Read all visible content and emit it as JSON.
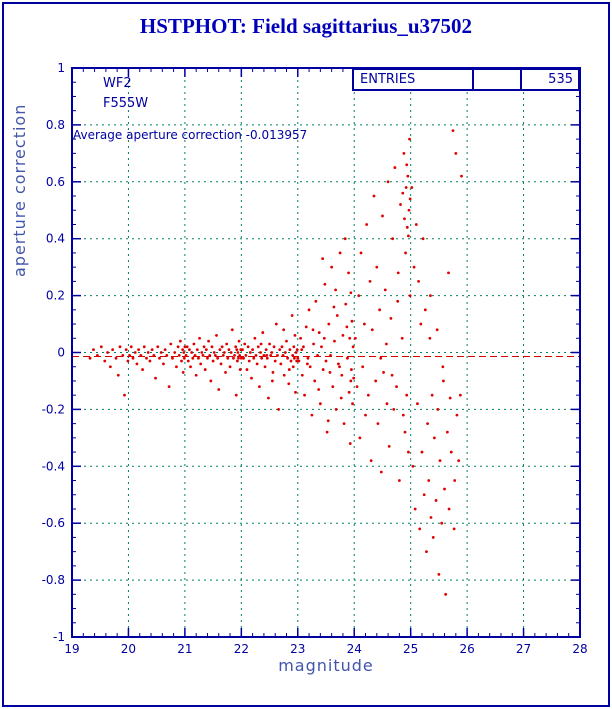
{
  "window": {
    "bg": "#ffffff",
    "border_color": "#0000a0"
  },
  "title": "HSTPHOT: Field sagittarius_u37502",
  "annotations": {
    "detector": "WF2",
    "filter": "F555W",
    "avg_text": "Average aperture correction -0.013957",
    "entries_label": "ENTRIES",
    "entries_value": "535"
  },
  "chart_data": {
    "type": "scatter",
    "title": "HSTPHOT: Field sagittarius_u37502",
    "xlabel": "magnitude",
    "ylabel": "aperture correction",
    "xlim": [
      19,
      28
    ],
    "ylim": [
      -1,
      1
    ],
    "x_ticks": [
      19,
      20,
      21,
      22,
      23,
      24,
      25,
      26,
      27,
      28
    ],
    "y_ticks": [
      -1,
      -0.8,
      -0.6,
      -0.4,
      -0.2,
      0,
      0.2,
      0.4,
      0.6,
      0.8,
      1
    ],
    "grid": true,
    "grid_color": "#008066",
    "frame_color": "#0000a0",
    "tick_label_color": "#0000a0",
    "point_color": "#e00000",
    "entries": 535,
    "average_aperture_correction": -0.013957,
    "mean_line": {
      "y": -0.013957,
      "color": "#d40000",
      "style": "dashed"
    },
    "points": [
      [
        19.32,
        -0.02
      ],
      [
        19.38,
        0.01
      ],
      [
        19.45,
        -0.01
      ],
      [
        19.52,
        0.02
      ],
      [
        19.58,
        -0.03
      ],
      [
        19.63,
        0.0
      ],
      [
        19.68,
        -0.05
      ],
      [
        19.72,
        0.01
      ],
      [
        19.78,
        -0.02
      ],
      [
        19.82,
        -0.08
      ],
      [
        19.85,
        0.02
      ],
      [
        19.9,
        -0.01
      ],
      [
        19.93,
        -0.15
      ],
      [
        19.96,
        0.01
      ],
      [
        19.99,
        -0.03
      ],
      [
        20.02,
        -0.01
      ],
      [
        20.05,
        0.02
      ],
      [
        20.08,
        -0.02
      ],
      [
        20.12,
        0.0
      ],
      [
        20.15,
        -0.04
      ],
      [
        20.18,
        0.01
      ],
      [
        20.22,
        -0.01
      ],
      [
        20.25,
        -0.06
      ],
      [
        20.28,
        0.02
      ],
      [
        20.32,
        -0.02
      ],
      [
        20.35,
        0.0
      ],
      [
        20.38,
        -0.03
      ],
      [
        20.42,
        0.01
      ],
      [
        20.45,
        -0.01
      ],
      [
        20.48,
        -0.09
      ],
      [
        20.52,
        0.02
      ],
      [
        20.55,
        -0.02
      ],
      [
        20.58,
        0.0
      ],
      [
        20.62,
        -0.04
      ],
      [
        20.65,
        0.01
      ],
      [
        20.68,
        -0.01
      ],
      [
        20.72,
        -0.12
      ],
      [
        20.75,
        0.03
      ],
      [
        20.78,
        -0.02
      ],
      [
        20.82,
        0.0
      ],
      [
        20.85,
        -0.05
      ],
      [
        20.88,
        0.02
      ],
      [
        20.9,
        -0.01
      ],
      [
        20.92,
        0.04
      ],
      [
        20.94,
        -0.03
      ],
      [
        20.96,
        0.01
      ],
      [
        20.97,
        -0.07
      ],
      [
        20.98,
        0.0
      ],
      [
        20.99,
        -0.02
      ],
      [
        21.0,
        0.02
      ],
      [
        21.02,
        -0.01
      ],
      [
        21.04,
        0.02
      ],
      [
        21.06,
        -0.03
      ],
      [
        21.08,
        0.01
      ],
      [
        21.1,
        -0.05
      ],
      [
        21.12,
        0.0
      ],
      [
        21.14,
        -0.02
      ],
      [
        21.16,
        0.03
      ],
      [
        21.18,
        -0.01
      ],
      [
        21.2,
        -0.08
      ],
      [
        21.22,
        0.01
      ],
      [
        21.24,
        -0.02
      ],
      [
        21.26,
        0.05
      ],
      [
        21.28,
        -0.04
      ],
      [
        21.3,
        0.0
      ],
      [
        21.32,
        -0.01
      ],
      [
        21.34,
        0.02
      ],
      [
        21.36,
        -0.06
      ],
      [
        21.38,
        0.01
      ],
      [
        21.4,
        -0.02
      ],
      [
        21.42,
        0.04
      ],
      [
        21.44,
        -0.01
      ],
      [
        21.46,
        -0.1
      ],
      [
        21.48,
        0.02
      ],
      [
        21.5,
        -0.03
      ],
      [
        21.52,
        0.0
      ],
      [
        21.54,
        -0.01
      ],
      [
        21.56,
        0.06
      ],
      [
        21.58,
        -0.02
      ],
      [
        21.6,
        -0.13
      ],
      [
        21.62,
        0.01
      ],
      [
        21.64,
        -0.04
      ],
      [
        21.66,
        0.02
      ],
      [
        21.68,
        -0.01
      ],
      [
        21.7,
        0.0
      ],
      [
        21.72,
        -0.07
      ],
      [
        21.74,
        0.03
      ],
      [
        21.76,
        -0.02
      ],
      [
        21.78,
        0.01
      ],
      [
        21.8,
        -0.05
      ],
      [
        21.82,
        0.0
      ],
      [
        21.84,
        0.08
      ],
      [
        21.86,
        -0.02
      ],
      [
        21.88,
        -0.01
      ],
      [
        21.9,
        0.02
      ],
      [
        21.91,
        -0.15
      ],
      [
        21.92,
        0.01
      ],
      [
        21.93,
        -0.03
      ],
      [
        21.94,
        0.0
      ],
      [
        21.95,
        -0.02
      ],
      [
        21.96,
        0.04
      ],
      [
        21.97,
        -0.01
      ],
      [
        21.98,
        -0.06
      ],
      [
        21.99,
        0.01
      ],
      [
        22.0,
        -0.02
      ],
      [
        22.02,
        0.01
      ],
      [
        22.04,
        -0.02
      ],
      [
        22.06,
        0.03
      ],
      [
        22.08,
        -0.01
      ],
      [
        22.1,
        -0.06
      ],
      [
        22.12,
        0.02
      ],
      [
        22.14,
        -0.03
      ],
      [
        22.16,
        0.0
      ],
      [
        22.18,
        -0.09
      ],
      [
        22.2,
        0.01
      ],
      [
        22.22,
        -0.02
      ],
      [
        22.24,
        0.05
      ],
      [
        22.26,
        -0.01
      ],
      [
        22.28,
        -0.04
      ],
      [
        22.3,
        0.02
      ],
      [
        22.32,
        -0.12
      ],
      [
        22.34,
        0.0
      ],
      [
        22.36,
        -0.02
      ],
      [
        22.38,
        0.07
      ],
      [
        22.4,
        -0.01
      ],
      [
        22.42,
        -0.05
      ],
      [
        22.44,
        0.01
      ],
      [
        22.46,
        -0.02
      ],
      [
        22.48,
        -0.16
      ],
      [
        22.5,
        0.03
      ],
      [
        22.52,
        -0.01
      ],
      [
        22.54,
        0.0
      ],
      [
        22.56,
        -0.07
      ],
      [
        22.58,
        0.02
      ],
      [
        22.6,
        -0.03
      ],
      [
        22.62,
        0.1
      ],
      [
        22.64,
        -0.01
      ],
      [
        22.66,
        -0.2
      ],
      [
        22.68,
        0.01
      ],
      [
        22.7,
        -0.04
      ],
      [
        22.72,
        0.02
      ],
      [
        22.74,
        -0.01
      ],
      [
        22.76,
        -0.08
      ],
      [
        22.78,
        0.0
      ],
      [
        22.8,
        0.04
      ],
      [
        22.82,
        -0.02
      ],
      [
        22.84,
        -0.11
      ],
      [
        22.86,
        0.01
      ],
      [
        22.88,
        -0.03
      ],
      [
        22.9,
        0.13
      ],
      [
        22.91,
        -0.01
      ],
      [
        22.92,
        -0.05
      ],
      [
        22.93,
        0.02
      ],
      [
        22.94,
        -0.02
      ],
      [
        22.95,
        0.06
      ],
      [
        22.96,
        -0.14
      ],
      [
        22.97,
        0.0
      ],
      [
        22.98,
        -0.03
      ],
      [
        22.99,
        0.01
      ],
      [
        23.0,
        -0.02
      ],
      [
        22.35,
        0.03
      ],
      [
        22.55,
        -0.1
      ],
      [
        22.75,
        0.08
      ],
      [
        22.85,
        -0.06
      ],
      [
        22.45,
        -0.01
      ],
      [
        23.02,
        -0.03
      ],
      [
        23.05,
        0.05
      ],
      [
        23.08,
        -0.08
      ],
      [
        23.1,
        0.02
      ],
      [
        23.12,
        -0.15
      ],
      [
        23.15,
        0.09
      ],
      [
        23.18,
        -0.02
      ],
      [
        23.2,
        0.15
      ],
      [
        23.22,
        -0.05
      ],
      [
        23.25,
        -0.22
      ],
      [
        23.28,
        0.03
      ],
      [
        23.3,
        -0.1
      ],
      [
        23.32,
        0.18
      ],
      [
        23.35,
        -0.01
      ],
      [
        23.38,
        0.07
      ],
      [
        23.4,
        -0.18
      ],
      [
        23.42,
        0.02
      ],
      [
        23.45,
        -0.06
      ],
      [
        23.48,
        0.24
      ],
      [
        23.5,
        -0.03
      ],
      [
        23.52,
        -0.28
      ],
      [
        23.55,
        0.1
      ],
      [
        23.58,
        -0.01
      ],
      [
        23.6,
        0.3
      ],
      [
        23.62,
        -0.12
      ],
      [
        23.65,
        0.04
      ],
      [
        23.68,
        -0.2
      ],
      [
        23.7,
        0.13
      ],
      [
        23.72,
        -0.04
      ],
      [
        23.75,
        0.35
      ],
      [
        23.78,
        -0.08
      ],
      [
        23.8,
        0.06
      ],
      [
        23.82,
        -0.25
      ],
      [
        23.85,
        0.17
      ],
      [
        23.88,
        -0.02
      ],
      [
        23.9,
        0.28
      ],
      [
        23.91,
        -0.14
      ],
      [
        23.92,
        0.05
      ],
      [
        23.93,
        -0.32
      ],
      [
        23.94,
        0.21
      ],
      [
        23.95,
        -0.06
      ],
      [
        23.96,
        0.11
      ],
      [
        23.97,
        -0.18
      ],
      [
        23.98,
        0.02
      ],
      [
        23.99,
        -0.09
      ],
      [
        23.07,
        0.01
      ],
      [
        23.17,
        -0.04
      ],
      [
        23.27,
        0.08
      ],
      [
        23.37,
        -0.13
      ],
      [
        23.47,
        0.05
      ],
      [
        23.57,
        -0.07
      ],
      [
        23.67,
        0.22
      ],
      [
        23.77,
        -0.16
      ],
      [
        23.87,
        0.09
      ],
      [
        23.44,
        0.33
      ],
      [
        23.54,
        -0.24
      ],
      [
        23.64,
        0.16
      ],
      [
        23.74,
        -0.05
      ],
      [
        23.84,
        0.4
      ],
      [
        23.94,
        -0.1
      ],
      [
        24.02,
        0.05
      ],
      [
        24.05,
        -0.12
      ],
      [
        24.08,
        0.2
      ],
      [
        24.1,
        -0.3
      ],
      [
        24.12,
        0.35
      ],
      [
        24.15,
        -0.05
      ],
      [
        24.18,
        0.1
      ],
      [
        24.2,
        -0.22
      ],
      [
        24.22,
        0.45
      ],
      [
        24.25,
        -0.15
      ],
      [
        24.28,
        0.25
      ],
      [
        24.3,
        -0.38
      ],
      [
        24.32,
        0.08
      ],
      [
        24.35,
        0.55
      ],
      [
        24.38,
        -0.1
      ],
      [
        24.4,
        0.3
      ],
      [
        24.42,
        -0.25
      ],
      [
        24.45,
        0.15
      ],
      [
        24.48,
        -0.42
      ],
      [
        24.5,
        0.48
      ],
      [
        24.52,
        -0.07
      ],
      [
        24.55,
        0.22
      ],
      [
        24.58,
        -0.18
      ],
      [
        24.6,
        0.6
      ],
      [
        24.62,
        -0.33
      ],
      [
        24.65,
        0.12
      ],
      [
        24.68,
        0.4
      ],
      [
        24.7,
        -0.2
      ],
      [
        24.72,
        0.65
      ],
      [
        24.75,
        -0.12
      ],
      [
        24.78,
        0.28
      ],
      [
        24.8,
        -0.45
      ],
      [
        24.82,
        0.52
      ],
      [
        24.85,
        0.05
      ],
      [
        24.88,
        0.7
      ],
      [
        24.9,
        -0.28
      ],
      [
        24.91,
        0.35
      ],
      [
        24.92,
        0.58
      ],
      [
        24.93,
        -0.15
      ],
      [
        24.94,
        0.44
      ],
      [
        24.95,
        0.62
      ],
      [
        24.96,
        -0.35
      ],
      [
        24.97,
        0.5
      ],
      [
        24.98,
        0.75
      ],
      [
        24.99,
        0.2
      ],
      [
        24.86,
        0.56
      ],
      [
        24.89,
        0.47
      ],
      [
        24.93,
        0.66
      ],
      [
        24.96,
        0.41
      ],
      [
        24.99,
        0.54
      ],
      [
        24.47,
        -0.02
      ],
      [
        24.57,
        0.03
      ],
      [
        24.67,
        -0.08
      ],
      [
        24.77,
        0.18
      ],
      [
        24.87,
        -0.22
      ],
      [
        25.02,
        0.58
      ],
      [
        25.04,
        -0.4
      ],
      [
        25.06,
        0.3
      ],
      [
        25.08,
        -0.55
      ],
      [
        25.1,
        0.45
      ],
      [
        25.12,
        -0.18
      ],
      [
        25.14,
        0.25
      ],
      [
        25.16,
        -0.62
      ],
      [
        25.18,
        0.1
      ],
      [
        25.2,
        -0.35
      ],
      [
        25.22,
        0.4
      ],
      [
        25.24,
        -0.5
      ],
      [
        25.26,
        0.15
      ],
      [
        25.28,
        -0.7
      ],
      [
        25.3,
        -0.25
      ],
      [
        25.32,
        -0.45
      ],
      [
        25.34,
        0.05
      ],
      [
        25.36,
        -0.58
      ],
      [
        25.38,
        -0.15
      ],
      [
        25.4,
        -0.65
      ],
      [
        25.42,
        -0.3
      ],
      [
        25.45,
        -0.52
      ],
      [
        25.48,
        -0.2
      ],
      [
        25.5,
        -0.78
      ],
      [
        25.52,
        -0.38
      ],
      [
        25.55,
        -0.6
      ],
      [
        25.58,
        -0.1
      ],
      [
        25.6,
        -0.48
      ],
      [
        25.62,
        -0.85
      ],
      [
        25.65,
        -0.28
      ],
      [
        25.68,
        -0.55
      ],
      [
        25.7,
        -0.16
      ],
      [
        25.72,
        -0.35
      ],
      [
        25.75,
        0.78
      ],
      [
        25.78,
        -0.45
      ],
      [
        25.8,
        0.7
      ],
      [
        25.82,
        -0.22
      ],
      [
        25.85,
        -0.38
      ],
      [
        25.88,
        -0.15
      ],
      [
        25.9,
        0.62
      ],
      [
        25.35,
        0.2
      ],
      [
        25.47,
        0.08
      ],
      [
        25.57,
        -0.05
      ],
      [
        25.67,
        0.28
      ],
      [
        25.77,
        -0.62
      ]
    ]
  }
}
